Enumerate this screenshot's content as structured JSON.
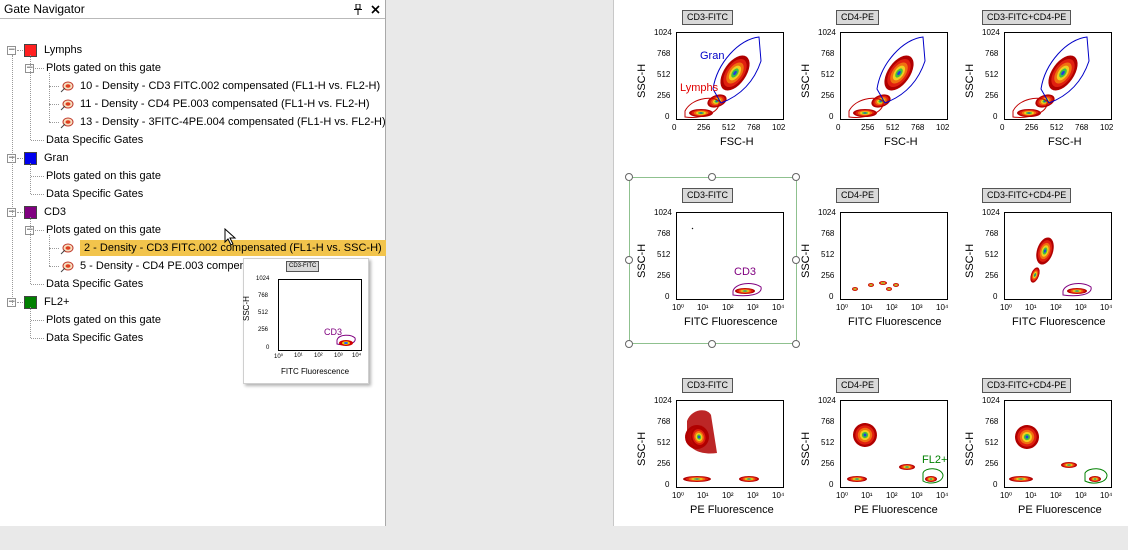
{
  "navigator": {
    "title": "Gate Navigator",
    "pin_glyph": "📌",
    "close_glyph": "✕",
    "tree": [
      {
        "gate": "Lymphs",
        "color": "#ff2020",
        "plots_label": "Plots gated on this gate",
        "specific_label": "Data Specific Gates",
        "plots": [
          "10 - Density - CD3 FITC.002 compensated (FL1-H vs. FL2-H)",
          "11 - Density - CD4 PE.003 compensated (FL1-H vs. FL2-H)",
          "13 - Density - 3FITC-4PE.004 compensated (FL1-H vs. FL2-H)"
        ]
      },
      {
        "gate": "Gran",
        "color": "#0000ee",
        "plots_label": "Plots gated on this gate",
        "specific_label": "Data Specific Gates",
        "plots": []
      },
      {
        "gate": "CD3",
        "color": "#800080",
        "plots_label": "Plots gated on this gate",
        "specific_label": "Data Specific Gates",
        "plots": [
          "2 - Density - CD3 FITC.002 compensated (FL1-H vs. SSC-H)",
          "5 - Density - CD4 PE.003 compensated (FL2-H vs. SSC-H)"
        ]
      },
      {
        "gate": "FL2+",
        "color": "#008000",
        "plots_label": "Plots gated on this gate",
        "specific_label": "Data Specific Gates",
        "plots": []
      }
    ]
  },
  "layout": {
    "rows": [
      {
        "ylabel": "SSC-H",
        "xlabel": "FSC-H",
        "xticks": [
          "0",
          "256",
          "512",
          "768",
          "102"
        ],
        "yticks": [
          "1024",
          "768",
          "512",
          "256",
          "0"
        ]
      },
      {
        "ylabel": "SSC-H",
        "xlabel": "FITC Fluorescence",
        "xticks": [
          "10⁰",
          "10¹",
          "10²",
          "10³",
          "10⁴"
        ],
        "yticks": [
          "1024",
          "768",
          "512",
          "256",
          "0"
        ]
      },
      {
        "ylabel": "SSC-H",
        "xlabel": "PE Fluorescence",
        "xticks": [
          "10⁰",
          "10¹",
          "10²",
          "10³",
          "10⁴"
        ],
        "yticks": [
          "1024",
          "768",
          "512",
          "256",
          "0"
        ]
      }
    ],
    "columns": [
      "CD3-FITC",
      "CD4-PE",
      "CD3-FITC+CD4-PE"
    ],
    "gate_labels": {
      "gran": "Gran",
      "lymphs": "Lymphs",
      "cd3": "CD3",
      "fl2": "FL2+"
    }
  },
  "popup": {
    "title": "CD3-FITC",
    "ylabel": "SSC-H",
    "xlabel": "FITC Fluorescence",
    "gate": "CD3",
    "yticks": [
      "1024",
      "768",
      "512",
      "256",
      "0"
    ],
    "xticks": [
      "10⁰",
      "10¹",
      "10²",
      "10³",
      "10⁴"
    ]
  },
  "colors": {
    "selection": "#f2c44c",
    "frame": "#8fc18f",
    "gran": "#0000c8",
    "lymphs": "#e00000",
    "cd3": "#800080",
    "fl2": "#008000"
  }
}
